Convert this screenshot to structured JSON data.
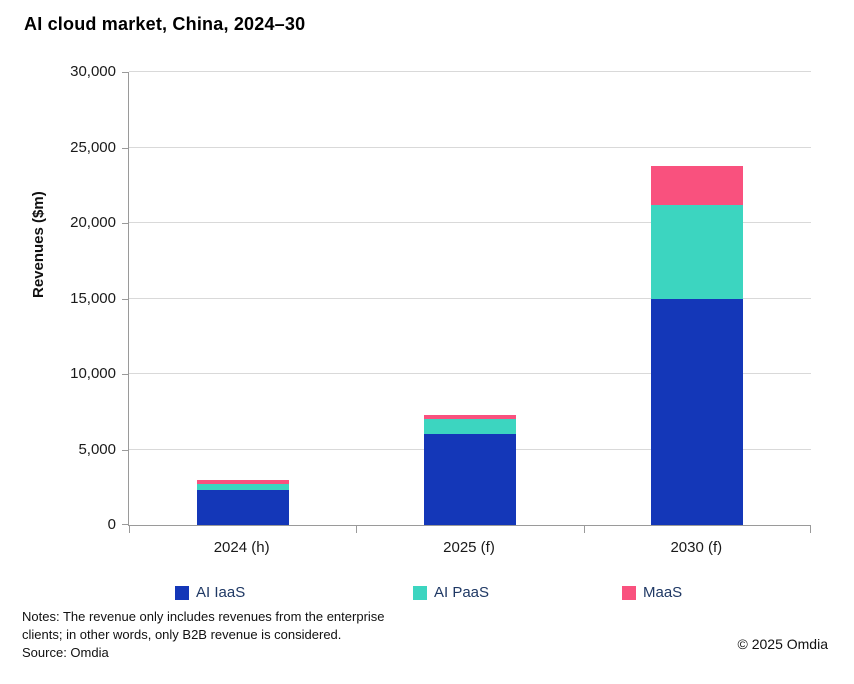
{
  "title": "AI cloud market, China, 2024–30",
  "chart_data": {
    "type": "bar",
    "stacked": true,
    "title": "AI cloud market, China, 2024–30",
    "xlabel": "",
    "ylabel": "Revenues ($m)",
    "ylim": [
      0,
      30000
    ],
    "ytick_interval": 5000,
    "ytick_labels": [
      "0",
      "5,000",
      "10,000",
      "15,000",
      "20,000",
      "25,000",
      "30,000"
    ],
    "grid": true,
    "legend_position": "bottom",
    "categories": [
      "2024 (h)",
      "2025 (f)",
      "2030 (f)"
    ],
    "series": [
      {
        "name": "AI IaaS",
        "color": "#1437b8",
        "values": [
          2300,
          6000,
          15000
        ]
      },
      {
        "name": "AI PaaS",
        "color": "#3cd5c0",
        "values": [
          400,
          1000,
          6200
        ]
      },
      {
        "name": "MaaS",
        "color": "#f9517e",
        "values": [
          250,
          300,
          2600
        ]
      }
    ]
  },
  "notes": "Notes: The revenue only includes revenues from the enterprise clients; in other words, only B2B revenue is considered.",
  "source": "Source: Omdia",
  "copyright": "© 2025 Omdia"
}
